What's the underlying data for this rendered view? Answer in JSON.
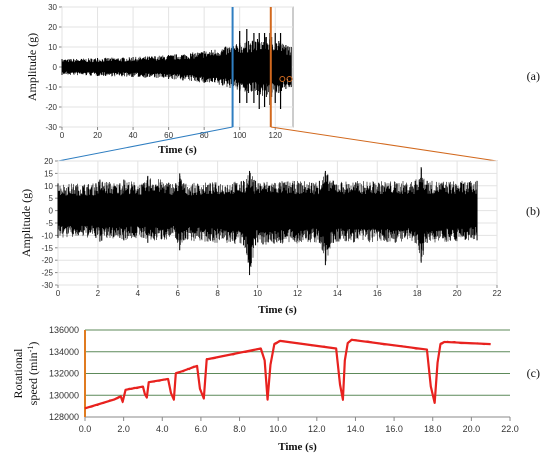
{
  "chart_data": [
    {
      "panel_label": "(a)",
      "type": "line",
      "xlabel": "Time (s)",
      "ylabel": "Amplitude (g)",
      "xlim": [
        0,
        130
      ],
      "ylim": [
        -30,
        30
      ],
      "x_ticks": [
        "0",
        "20",
        "40",
        "60",
        "80",
        "100",
        "120"
      ],
      "y_ticks": [
        "30",
        "20",
        "10",
        "0",
        "-10",
        "-20",
        "-30"
      ],
      "grid": true,
      "series": [
        {
          "color": "#000000",
          "envelope": true,
          "x": [
            0,
            20,
            40,
            60,
            80,
            96,
            100,
            105,
            110,
            115,
            118,
            122,
            126,
            129
          ],
          "upper": [
            4,
            4.5,
            5,
            6,
            8,
            11,
            12,
            13,
            14,
            15,
            15,
            13,
            11,
            10
          ],
          "lower": [
            -4,
            -4.5,
            -5,
            -6,
            -8,
            -11,
            -12,
            -13,
            -14,
            -15,
            -15,
            -13,
            -11,
            -10
          ]
        }
      ],
      "markers": [
        {
          "x": 96,
          "color": "#2f7ec1"
        },
        {
          "x": 117.5,
          "color": "#d2691e"
        }
      ]
    },
    {
      "panel_label": "(b)",
      "type": "line",
      "xlabel": "Time (s)",
      "ylabel": "Amplitude (g)",
      "xlim": [
        0,
        22
      ],
      "ylim": [
        -30,
        20
      ],
      "x_ticks": [
        "0",
        "2",
        "4",
        "6",
        "8",
        "10",
        "12",
        "14",
        "16",
        "18",
        "20",
        "22"
      ],
      "y_ticks": [
        "20",
        "15",
        "10",
        "5",
        "0",
        "-5",
        "-10",
        "-15",
        "-20",
        "-25",
        "-30"
      ],
      "grid": true,
      "series": [
        {
          "color": "#000000",
          "envelope": true,
          "x": [
            0,
            1.9,
            2.1,
            3.1,
            3.3,
            4.3,
            4.5,
            5.9,
            6.1,
            6.3,
            9.3,
            9.6,
            9.9,
            13.1,
            13.4,
            13.8,
            17.9,
            18.2,
            18.5,
            21
          ],
          "upper": [
            11,
            11,
            12.5,
            11,
            12.5,
            11,
            14,
            11,
            15,
            11,
            12,
            16,
            12,
            12,
            16,
            12,
            12,
            17.5,
            12,
            12
          ],
          "lower": [
            -11,
            -11,
            -12.5,
            -11,
            -12,
            -11,
            -13,
            -11,
            -16,
            -12,
            -14,
            -26,
            -14,
            -13,
            -22,
            -13,
            -13,
            -21,
            -13,
            -12
          ]
        }
      ]
    },
    {
      "panel_label": "(c)",
      "type": "line",
      "xlabel": "Time (s)",
      "ylabel": "Rotational speed (min⁻¹)",
      "ylabel_line1": "Rotational",
      "ylabel_line2_main": "speed (min",
      "ylabel_line2_sup": "-1",
      "ylabel_line2_end": ")",
      "xlim": [
        0,
        22
      ],
      "ylim": [
        128000,
        136000
      ],
      "x_ticks": [
        "0.0",
        "2.0",
        "4.0",
        "6.0",
        "8.0",
        "10.0",
        "12.0",
        "14.0",
        "16.0",
        "18.0",
        "20.0",
        "22.0"
      ],
      "y_ticks": [
        "136000",
        "134000",
        "132000",
        "130000",
        "128000"
      ],
      "grid": true,
      "series": [
        {
          "color": "#e8221f",
          "x": [
            0.0,
            1.5,
            1.85,
            1.95,
            2.1,
            3.0,
            3.1,
            3.2,
            3.3,
            4.3,
            4.45,
            4.6,
            4.7,
            5.8,
            5.95,
            6.15,
            6.3,
            9.1,
            9.3,
            9.45,
            9.6,
            9.8,
            10.1,
            13.0,
            13.2,
            13.35,
            13.45,
            13.6,
            13.8,
            17.7,
            17.9,
            18.1,
            18.25,
            18.4,
            18.6,
            21.0
          ],
          "y": [
            128800,
            129600,
            129900,
            129400,
            130500,
            130800,
            130100,
            129800,
            131200,
            131500,
            130200,
            129600,
            132000,
            132700,
            130600,
            129700,
            133300,
            134300,
            133200,
            129600,
            132800,
            134700,
            135000,
            134300,
            131000,
            129600,
            133200,
            134800,
            135100,
            134200,
            130800,
            129300,
            133000,
            134700,
            134900,
            134700
          ]
        }
      ],
      "markers": [
        {
          "x": 0,
          "color": "#e07b20"
        }
      ]
    }
  ]
}
